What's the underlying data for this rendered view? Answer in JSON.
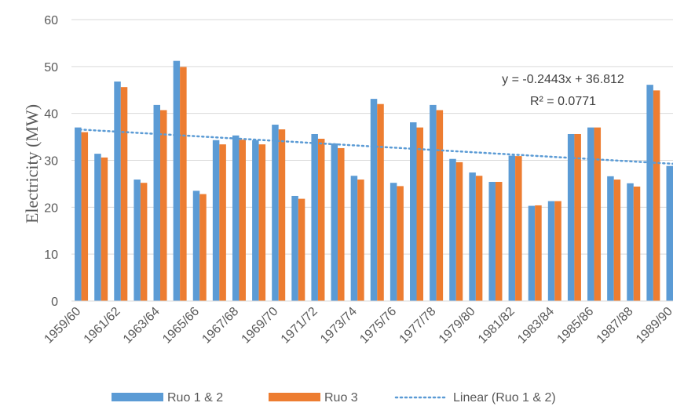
{
  "chart_data": {
    "type": "bar",
    "ylabel": "Electricity (MW)",
    "ylim": [
      0,
      60
    ],
    "yticks": [
      0,
      10,
      20,
      30,
      40,
      50,
      60
    ],
    "grid": true,
    "legend_position": "bottom",
    "categories": [
      "1959/60",
      "1960/61",
      "1961/62",
      "1962/63",
      "1963/64",
      "1964/65",
      "1965/66",
      "1966/67",
      "1967/68",
      "1968/69",
      "1969/70",
      "1970/71",
      "1971/72",
      "1972/73",
      "1973/74",
      "1974/75",
      "1975/76",
      "1976/77",
      "1977/78",
      "1978/79",
      "1979/80",
      "1980/81",
      "1981/82",
      "1982/83",
      "1983/84",
      "1984/85",
      "1985/86",
      "1986/87",
      "1987/88",
      "1988/89",
      "1989/90"
    ],
    "tick_labels": [
      "1959/60",
      "",
      "1961/62",
      "",
      "1963/64",
      "",
      "1965/66",
      "",
      "1967/68",
      "",
      "1969/70",
      "",
      "1971/72",
      "",
      "1973/74",
      "",
      "1975/76",
      "",
      "1977/78",
      "",
      "1979/80",
      "",
      "1981/82",
      "",
      "1983/84",
      "",
      "1985/86",
      "",
      "1987/88",
      "",
      "1989/90"
    ],
    "series": [
      {
        "name": "Ruo 1 & 2",
        "color": "#5B9BD5",
        "values": [
          37.0,
          31.4,
          46.8,
          25.9,
          41.8,
          51.2,
          23.5,
          34.3,
          35.3,
          34.3,
          37.6,
          22.4,
          35.6,
          33.6,
          26.7,
          43.1,
          25.2,
          38.1,
          41.8,
          30.3,
          27.4,
          25.4,
          31.0,
          20.3,
          21.3,
          35.6,
          37.0,
          26.6,
          25.1,
          46.1,
          28.8
        ]
      },
      {
        "name": "Ruo 3",
        "color": "#ED7D31",
        "values": [
          36.0,
          30.6,
          45.6,
          25.2,
          40.7,
          49.9,
          22.8,
          33.4,
          34.4,
          33.4,
          36.6,
          21.8,
          34.6,
          32.6,
          25.9,
          42.0,
          24.5,
          37.0,
          40.7,
          29.6,
          26.7,
          25.4,
          30.9,
          20.4,
          21.3,
          35.6,
          37.0,
          25.9,
          24.4,
          44.9,
          28.0
        ]
      }
    ],
    "trendline": {
      "name": "Linear (Ruo 1 & 2)",
      "color": "#5B9BD5",
      "slope": -0.2443,
      "intercept": 36.812,
      "equation": "y = -0.2443x + 36.812",
      "r2": "R² = 0.0771"
    }
  }
}
